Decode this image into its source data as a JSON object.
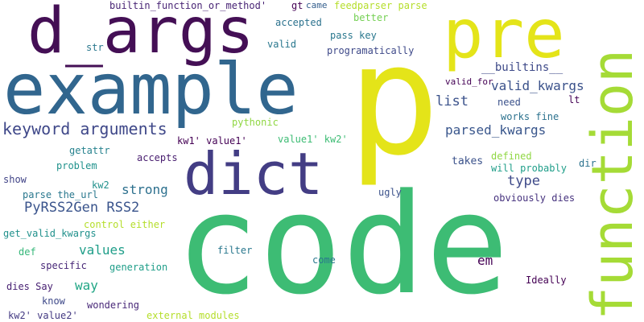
{
  "words": [
    {
      "text": "code",
      "color": "#3dbc74"
    },
    {
      "text": "p",
      "color": "#e4e419"
    },
    {
      "text": "example",
      "color": "#31668e"
    },
    {
      "text": "pre",
      "color": "#e4e419"
    },
    {
      "text": "d_args",
      "color": "#440f55"
    },
    {
      "text": "dict",
      "color": "#433d84"
    },
    {
      "text": "function",
      "color": "#a5db36"
    },
    {
      "text": "keyword arguments",
      "color": "#3f4889"
    },
    {
      "text": "PyRSS2Gen RSS2",
      "color": "#3a548c"
    },
    {
      "text": "valid_kwargs",
      "color": "#3b528b"
    },
    {
      "text": "parsed_kwargs",
      "color": "#39568c"
    },
    {
      "text": "type",
      "color": "#3e4a89"
    },
    {
      "text": "list",
      "color": "#3b528b"
    },
    {
      "text": "values",
      "color": "#1f9e89"
    },
    {
      "text": "strong",
      "color": "#2d708e"
    },
    {
      "text": "em",
      "color": "#440154"
    },
    {
      "text": "way",
      "color": "#21a685"
    },
    {
      "text": "__builtins__",
      "color": "#3e4a89"
    },
    {
      "text": "builtin_function_or_method'",
      "color": "#482475"
    },
    {
      "text": "gt",
      "color": "#440154"
    },
    {
      "text": "came",
      "color": "#355f8d"
    },
    {
      "text": "feedparser parse",
      "color": "#b5de2b"
    },
    {
      "text": "accepted",
      "color": "#2c728e"
    },
    {
      "text": "better",
      "color": "#75d054"
    },
    {
      "text": "valid",
      "color": "#2a788e"
    },
    {
      "text": "pass key",
      "color": "#2a788e"
    },
    {
      "text": "str",
      "color": "#2a788e"
    },
    {
      "text": "programatically",
      "color": "#3e4989"
    },
    {
      "text": "valid_for",
      "color": "#440154"
    },
    {
      "text": "lt",
      "color": "#440154"
    },
    {
      "text": "need",
      "color": "#3b528b"
    },
    {
      "text": "works fine",
      "color": "#2c728e"
    },
    {
      "text": "pythonic",
      "color": "#90d743"
    },
    {
      "text": "kw1' value1'",
      "color": "#440154"
    },
    {
      "text": "value1' kw2'",
      "color": "#3dbc74"
    },
    {
      "text": "getattr",
      "color": "#26828e"
    },
    {
      "text": "accepts",
      "color": "#481d6f"
    },
    {
      "text": "problem",
      "color": "#20928c"
    },
    {
      "text": "takes",
      "color": "#3b528b"
    },
    {
      "text": "defined",
      "color": "#90d743"
    },
    {
      "text": "will probably",
      "color": "#1f9e89"
    },
    {
      "text": "dir",
      "color": "#2c728e"
    },
    {
      "text": "show",
      "color": "#414487"
    },
    {
      "text": "kw2",
      "color": "#21918c"
    },
    {
      "text": "parse the_url",
      "color": "#2a788e"
    },
    {
      "text": "ugly",
      "color": "#3b528b"
    },
    {
      "text": "obviously dies",
      "color": "#46327e"
    },
    {
      "text": "control either",
      "color": "#b5de2b"
    },
    {
      "text": "get_valid_kwargs",
      "color": "#21918c"
    },
    {
      "text": "def",
      "color": "#35b779"
    },
    {
      "text": "filter",
      "color": "#2a788e"
    },
    {
      "text": "specific",
      "color": "#482878"
    },
    {
      "text": "generation",
      "color": "#1f9e89"
    },
    {
      "text": "come",
      "color": "#2a788e"
    },
    {
      "text": "Ideally",
      "color": "#440154"
    },
    {
      "text": "dies Say",
      "color": "#482173"
    },
    {
      "text": "know",
      "color": "#3e4989"
    },
    {
      "text": "wondering",
      "color": "#482878"
    },
    {
      "text": "kw2' value2'",
      "color": "#443a83"
    },
    {
      "text": "external modules",
      "color": "#b5de2b"
    }
  ]
}
